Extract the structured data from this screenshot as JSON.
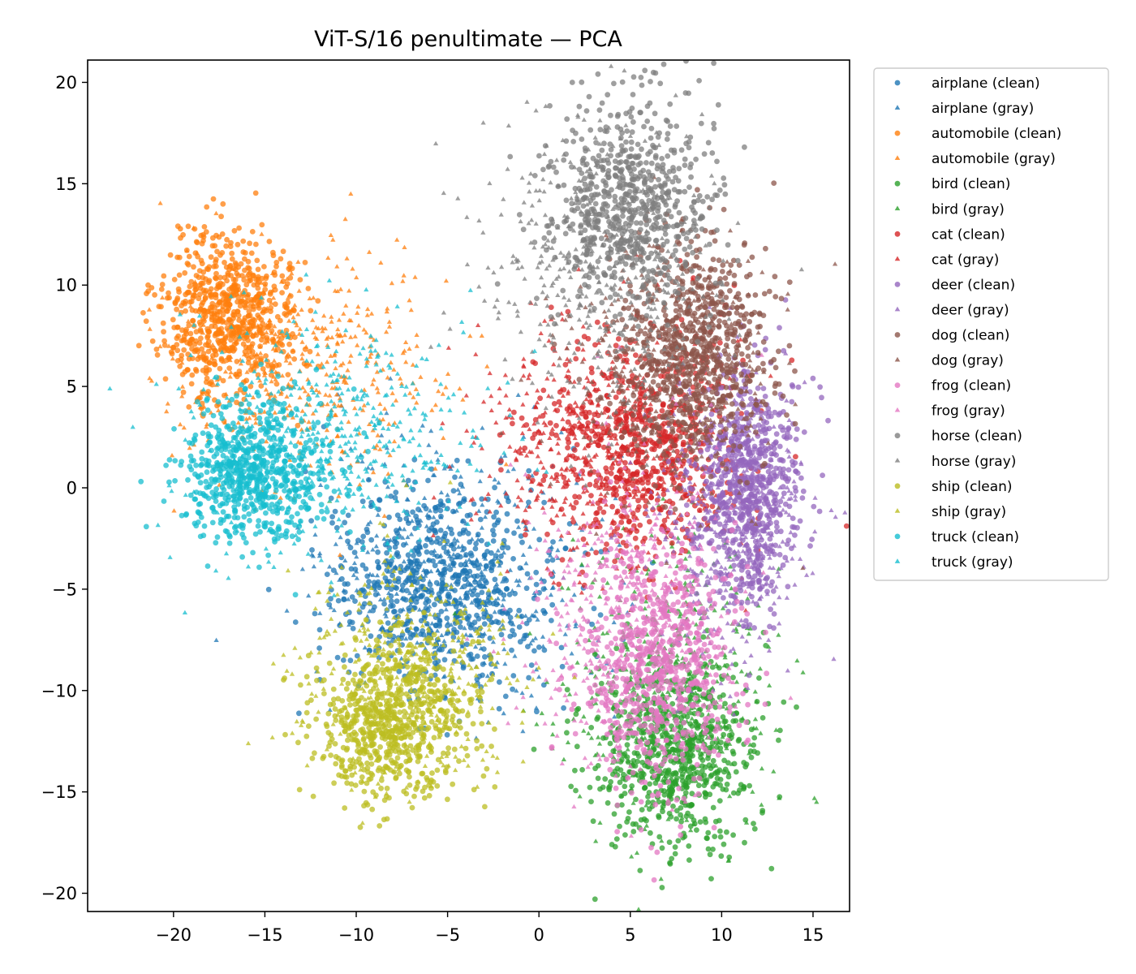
{
  "chart_data": {
    "type": "scatter",
    "title": "ViT-S/16 penultimate — PCA",
    "xlabel": "",
    "ylabel": "",
    "xlim": [
      -24.7,
      17.0
    ],
    "ylim": [
      -20.9,
      21.1
    ],
    "x_ticks": [
      -20,
      -15,
      -10,
      -5,
      0,
      5,
      10,
      15
    ],
    "x_tick_labels": [
      "−20",
      "−15",
      "−10",
      "−5",
      "0",
      "5",
      "10",
      "15"
    ],
    "y_ticks": [
      20,
      15,
      10,
      5,
      0,
      -5,
      -10,
      -15,
      -20
    ],
    "y_tick_labels": [
      "20",
      "15",
      "10",
      "5",
      "0",
      "−5",
      "−10",
      "−15",
      "−20"
    ],
    "grid": false,
    "legend_position": "outside-right-top",
    "note": "Dense point clouds summarized as cluster centers (mean) and spreads (std) per series, estimated from the figure.",
    "series": [
      {
        "name": "airplane (clean)",
        "color": "#1f77b4",
        "marker": "circle",
        "center": [
          -5.5,
          -5.0
        ],
        "spread": [
          3.2,
          2.6
        ]
      },
      {
        "name": "airplane (gray)",
        "color": "#1f77b4",
        "marker": "triangle",
        "center": [
          -4.5,
          -4.0
        ],
        "spread": [
          4.0,
          3.2
        ]
      },
      {
        "name": "automobile (clean)",
        "color": "#ff7f0e",
        "marker": "circle",
        "center": [
          -17.0,
          8.5
        ],
        "spread": [
          1.8,
          2.0
        ]
      },
      {
        "name": "automobile (gray)",
        "color": "#ff7f0e",
        "marker": "triangle",
        "center": [
          -13.0,
          6.0
        ],
        "spread": [
          4.0,
          2.8
        ]
      },
      {
        "name": "bird (clean)",
        "color": "#2ca02c",
        "marker": "circle",
        "center": [
          7.5,
          -13.0
        ],
        "spread": [
          2.2,
          2.4
        ]
      },
      {
        "name": "bird (gray)",
        "color": "#2ca02c",
        "marker": "triangle",
        "center": [
          7.0,
          -10.0
        ],
        "spread": [
          2.8,
          3.5
        ]
      },
      {
        "name": "cat (clean)",
        "color": "#d62728",
        "marker": "circle",
        "center": [
          5.5,
          2.0
        ],
        "spread": [
          2.6,
          2.8
        ]
      },
      {
        "name": "cat (gray)",
        "color": "#d62728",
        "marker": "triangle",
        "center": [
          3.0,
          2.0
        ],
        "spread": [
          3.5,
          3.0
        ]
      },
      {
        "name": "deer (clean)",
        "color": "#9467bd",
        "marker": "circle",
        "center": [
          11.5,
          0.0
        ],
        "spread": [
          1.4,
          3.0
        ]
      },
      {
        "name": "deer (gray)",
        "color": "#9467bd",
        "marker": "triangle",
        "center": [
          10.5,
          -1.5
        ],
        "spread": [
          2.0,
          3.5
        ]
      },
      {
        "name": "dog (clean)",
        "color": "#8c564b",
        "marker": "circle",
        "center": [
          8.5,
          7.0
        ],
        "spread": [
          2.0,
          2.6
        ]
      },
      {
        "name": "dog (gray)",
        "color": "#8c564b",
        "marker": "triangle",
        "center": [
          7.0,
          5.5
        ],
        "spread": [
          2.8,
          3.2
        ]
      },
      {
        "name": "frog (clean)",
        "color": "#e377c2",
        "marker": "circle",
        "center": [
          6.5,
          -9.0
        ],
        "spread": [
          2.0,
          3.0
        ]
      },
      {
        "name": "frog (gray)",
        "color": "#e377c2",
        "marker": "triangle",
        "center": [
          5.0,
          -6.0
        ],
        "spread": [
          3.0,
          3.8
        ]
      },
      {
        "name": "horse (clean)",
        "color": "#7f7f7f",
        "marker": "circle",
        "center": [
          5.0,
          14.0
        ],
        "spread": [
          2.2,
          2.6
        ]
      },
      {
        "name": "horse (gray)",
        "color": "#7f7f7f",
        "marker": "triangle",
        "center": [
          3.5,
          11.0
        ],
        "spread": [
          3.0,
          3.6
        ]
      },
      {
        "name": "ship (clean)",
        "color": "#bcbd22",
        "marker": "circle",
        "center": [
          -8.0,
          -11.5
        ],
        "spread": [
          2.0,
          2.0
        ]
      },
      {
        "name": "ship (gray)",
        "color": "#bcbd22",
        "marker": "triangle",
        "center": [
          -7.0,
          -9.0
        ],
        "spread": [
          3.0,
          2.8
        ]
      },
      {
        "name": "truck (clean)",
        "color": "#17becf",
        "marker": "circle",
        "center": [
          -15.5,
          0.8
        ],
        "spread": [
          2.0,
          1.8
        ]
      },
      {
        "name": "truck (gray)",
        "color": "#17becf",
        "marker": "triangle",
        "center": [
          -12.0,
          2.5
        ],
        "spread": [
          4.0,
          3.0
        ]
      }
    ]
  }
}
